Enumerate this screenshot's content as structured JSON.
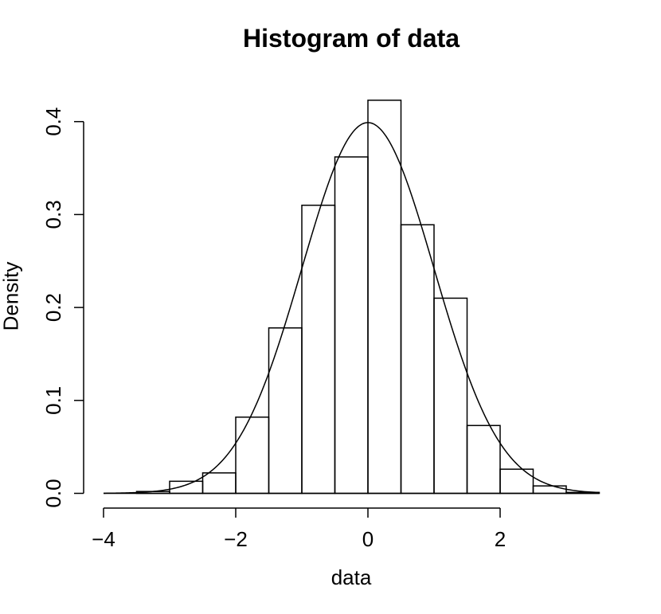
{
  "chart_data": {
    "type": "bar",
    "title": "Histogram of data",
    "xlabel": "data",
    "ylabel": "Density",
    "bins": [
      {
        "x0": -3.5,
        "x1": -3.0,
        "density": 0.002
      },
      {
        "x0": -3.0,
        "x1": -2.5,
        "density": 0.013
      },
      {
        "x0": -2.5,
        "x1": -2.0,
        "density": 0.022
      },
      {
        "x0": -2.0,
        "x1": -1.5,
        "density": 0.082
      },
      {
        "x0": -1.5,
        "x1": -1.0,
        "density": 0.178
      },
      {
        "x0": -1.0,
        "x1": -0.5,
        "density": 0.31
      },
      {
        "x0": -0.5,
        "x1": 0.0,
        "density": 0.362
      },
      {
        "x0": 0.0,
        "x1": 0.5,
        "density": 0.423
      },
      {
        "x0": 0.5,
        "x1": 1.0,
        "density": 0.289
      },
      {
        "x0": 1.0,
        "x1": 1.5,
        "density": 0.21
      },
      {
        "x0": 1.5,
        "x1": 2.0,
        "density": 0.073
      },
      {
        "x0": 2.0,
        "x1": 2.5,
        "density": 0.026
      },
      {
        "x0": 2.5,
        "x1": 3.0,
        "density": 0.008
      },
      {
        "x0": 3.0,
        "x1": 3.5,
        "density": 0.001
      }
    ],
    "curve": {
      "type": "normal-density",
      "mean": 0,
      "sd": 1,
      "x_range": [
        -4,
        3.5
      ]
    },
    "xlim": [
      -4,
      3.5
    ],
    "ylim": [
      0,
      0.4
    ],
    "x_ticks": [
      -4,
      -2,
      0,
      2
    ],
    "x_tick_labels": [
      "−4",
      "−2",
      "0",
      "2"
    ],
    "y_ticks": [
      0.0,
      0.1,
      0.2,
      0.3,
      0.4
    ],
    "y_tick_labels": [
      "0.0",
      "0.1",
      "0.2",
      "0.3",
      "0.4"
    ],
    "grid": false,
    "legend": "none"
  }
}
